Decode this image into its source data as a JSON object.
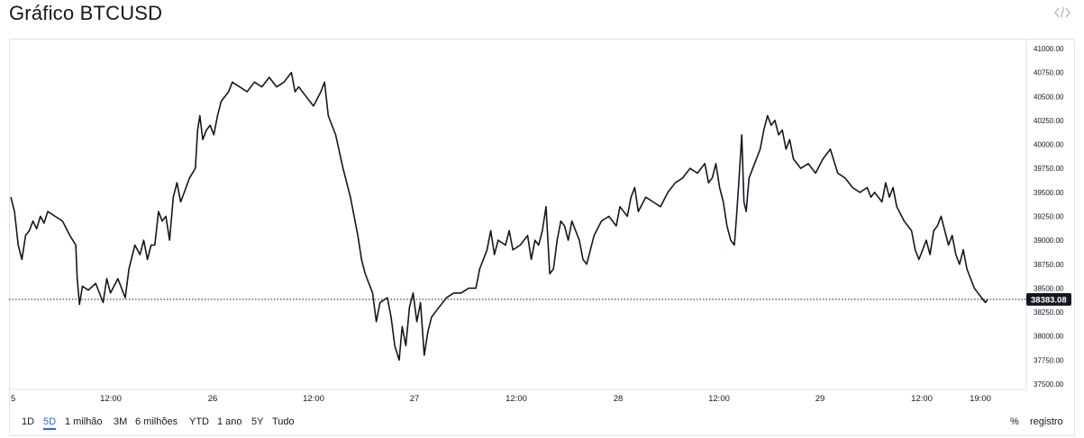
{
  "header": {
    "title": "Gráfico BTCUSD",
    "embed_icon": "code-brackets-icon"
  },
  "toolbar": {
    "ranges": [
      "1D",
      "5D",
      "1 milhão",
      "3M",
      "6 milhões",
      "YTD",
      "1 ano",
      "5Y",
      "Tudo"
    ],
    "active_range": "5D",
    "percent_label": "%",
    "log_label": "registro"
  },
  "colors": {
    "line": "#131722",
    "grid_border": "#e0e3eb",
    "price_badge_bg": "#131722",
    "price_badge_text": "#ffffff",
    "active_range": "#2962ff"
  },
  "chart_data": {
    "type": "line",
    "symbol": "BTCUSD",
    "x_tick_labels": [
      "5",
      "12:00",
      "26",
      "12:00",
      "27",
      "12:00",
      "28",
      "12:00",
      "29",
      "12:00",
      "19:00"
    ],
    "y_tick_labels": [
      "41000.00",
      "40750.00",
      "40500.00",
      "40250.00",
      "40000.00",
      "39750.00",
      "39500.00",
      "39250.00",
      "39000.00",
      "38750.00",
      "38500.00",
      "38250.00",
      "38000.00",
      "37750.00",
      "37500.00"
    ],
    "ylim": [
      37500,
      41000
    ],
    "x_hours_range": [
      0,
      117
    ],
    "last_price": 38383.08,
    "last_price_label": "38383.08",
    "grid": false,
    "series": [
      {
        "points": [
          [
            0,
            39450
          ],
          [
            0.5,
            39300
          ],
          [
            1,
            38950
          ],
          [
            1.5,
            38800
          ],
          [
            2,
            39050
          ],
          [
            2.5,
            39100
          ],
          [
            3,
            39200
          ],
          [
            3.5,
            39120
          ],
          [
            4,
            39250
          ],
          [
            4.5,
            39180
          ],
          [
            5,
            39300
          ],
          [
            6,
            39250
          ],
          [
            7,
            39200
          ],
          [
            8,
            39050
          ],
          [
            8.8,
            38950
          ],
          [
            9,
            38600
          ],
          [
            9.3,
            38330
          ],
          [
            9.7,
            38520
          ],
          [
            10.5,
            38480
          ],
          [
            11.5,
            38550
          ],
          [
            12.5,
            38350
          ],
          [
            13,
            38600
          ],
          [
            13.5,
            38450
          ],
          [
            14.5,
            38600
          ],
          [
            15.5,
            38400
          ],
          [
            16,
            38700
          ],
          [
            16.8,
            38950
          ],
          [
            17.5,
            38850
          ],
          [
            18,
            39000
          ],
          [
            18.5,
            38800
          ],
          [
            19,
            38950
          ],
          [
            19.5,
            38950
          ],
          [
            20,
            39300
          ],
          [
            20.5,
            39200
          ],
          [
            21,
            39250
          ],
          [
            21.5,
            39000
          ],
          [
            22,
            39450
          ],
          [
            22.5,
            39600
          ],
          [
            23,
            39400
          ],
          [
            23.5,
            39500
          ],
          [
            24.2,
            39650
          ],
          [
            25,
            39750
          ],
          [
            25.3,
            40150
          ],
          [
            25.6,
            40300
          ],
          [
            26,
            40050
          ],
          [
            26.5,
            40150
          ],
          [
            27,
            40200
          ],
          [
            27.5,
            40100
          ],
          [
            28,
            40300
          ],
          [
            28.5,
            40450
          ],
          [
            29,
            40500
          ],
          [
            29.5,
            40550
          ],
          [
            30,
            40650
          ],
          [
            31,
            40600
          ],
          [
            32,
            40550
          ],
          [
            33,
            40650
          ],
          [
            34,
            40600
          ],
          [
            35,
            40700
          ],
          [
            36,
            40600
          ],
          [
            37,
            40650
          ],
          [
            38,
            40750
          ],
          [
            38.5,
            40550
          ],
          [
            39,
            40600
          ],
          [
            40,
            40500
          ],
          [
            41,
            40400
          ],
          [
            42,
            40550
          ],
          [
            42.5,
            40650
          ],
          [
            43,
            40300
          ],
          [
            44,
            40100
          ],
          [
            45,
            39750
          ],
          [
            46,
            39450
          ],
          [
            47,
            39050
          ],
          [
            47.5,
            38800
          ],
          [
            48,
            38650
          ],
          [
            49,
            38450
          ],
          [
            49.5,
            38150
          ],
          [
            50,
            38350
          ],
          [
            51,
            38400
          ],
          [
            51.5,
            38200
          ],
          [
            52,
            37900
          ],
          [
            52.6,
            37750
          ],
          [
            53,
            38100
          ],
          [
            53.5,
            37900
          ],
          [
            54,
            38300
          ],
          [
            54.5,
            38450
          ],
          [
            55,
            38150
          ],
          [
            55.5,
            38350
          ],
          [
            56,
            37800
          ],
          [
            56.5,
            38050
          ],
          [
            57,
            38200
          ],
          [
            58,
            38300
          ],
          [
            59,
            38400
          ],
          [
            60,
            38450
          ],
          [
            61,
            38450
          ],
          [
            62,
            38500
          ],
          [
            63,
            38500
          ],
          [
            63.5,
            38700
          ],
          [
            64,
            38800
          ],
          [
            64.5,
            38900
          ],
          [
            65,
            39100
          ],
          [
            65.5,
            38850
          ],
          [
            66,
            39000
          ],
          [
            67,
            38950
          ],
          [
            67.5,
            39100
          ],
          [
            68,
            38900
          ],
          [
            69,
            38950
          ],
          [
            70,
            39050
          ],
          [
            70.5,
            38800
          ],
          [
            71,
            39000
          ],
          [
            71.5,
            38950
          ],
          [
            72,
            39100
          ],
          [
            72.5,
            39350
          ],
          [
            73,
            38650
          ],
          [
            73.5,
            38700
          ],
          [
            74,
            39000
          ],
          [
            74.5,
            39200
          ],
          [
            75,
            39150
          ],
          [
            75.5,
            39000
          ],
          [
            76,
            39200
          ],
          [
            76.5,
            39100
          ],
          [
            77,
            39000
          ],
          [
            77.5,
            38800
          ],
          [
            78,
            38750
          ],
          [
            79,
            39050
          ],
          [
            80,
            39200
          ],
          [
            81,
            39250
          ],
          [
            82,
            39150
          ],
          [
            82.5,
            39350
          ],
          [
            83,
            39300
          ],
          [
            83.5,
            39250
          ],
          [
            84,
            39450
          ],
          [
            84.5,
            39550
          ],
          [
            85,
            39300
          ],
          [
            86,
            39450
          ],
          [
            87,
            39400
          ],
          [
            88,
            39350
          ],
          [
            89,
            39500
          ],
          [
            90,
            39600
          ],
          [
            91,
            39650
          ],
          [
            92,
            39750
          ],
          [
            93,
            39700
          ],
          [
            94,
            39800
          ],
          [
            94.5,
            39600
          ],
          [
            95,
            39650
          ],
          [
            95.5,
            39800
          ],
          [
            96,
            39550
          ],
          [
            96.5,
            39400
          ],
          [
            97,
            39150
          ],
          [
            97.5,
            39000
          ],
          [
            98,
            38950
          ],
          [
            98.3,
            39250
          ],
          [
            98.6,
            39600
          ],
          [
            99,
            40100
          ],
          [
            99.3,
            39400
          ],
          [
            99.6,
            39300
          ],
          [
            100,
            39650
          ],
          [
            100.5,
            39750
          ],
          [
            101,
            39850
          ],
          [
            101.5,
            39950
          ],
          [
            102,
            40150
          ],
          [
            102.5,
            40300
          ],
          [
            103,
            40200
          ],
          [
            103.5,
            40250
          ],
          [
            104,
            40100
          ],
          [
            104.5,
            40150
          ],
          [
            105,
            39950
          ],
          [
            105.5,
            40050
          ],
          [
            106,
            39850
          ],
          [
            107,
            39750
          ],
          [
            108,
            39800
          ],
          [
            109,
            39700
          ],
          [
            110,
            39850
          ],
          [
            111,
            39950
          ],
          [
            112,
            39700
          ],
          [
            113,
            39650
          ],
          [
            114,
            39550
          ],
          [
            115,
            39500
          ],
          [
            116,
            39550
          ],
          [
            116.5,
            39450
          ],
          [
            117,
            39500
          ],
          [
            118,
            39400
          ],
          [
            118.5,
            39600
          ],
          [
            119,
            39450
          ],
          [
            119.5,
            39550
          ],
          [
            120,
            39350
          ],
          [
            121,
            39200
          ],
          [
            122,
            39100
          ],
          [
            122.5,
            38900
          ],
          [
            123,
            38800
          ],
          [
            123.5,
            38900
          ],
          [
            124,
            39000
          ],
          [
            124.5,
            38850
          ],
          [
            125,
            39100
          ],
          [
            125.5,
            39150
          ],
          [
            126,
            39250
          ],
          [
            126.5,
            39100
          ],
          [
            127,
            38950
          ],
          [
            127.5,
            39050
          ],
          [
            128,
            38850
          ],
          [
            128.5,
            38750
          ],
          [
            129,
            38900
          ],
          [
            129.5,
            38700
          ],
          [
            130,
            38600
          ],
          [
            130.5,
            38500
          ],
          [
            131,
            38450
          ],
          [
            131.5,
            38400
          ],
          [
            132,
            38350
          ],
          [
            132.3,
            38383.08
          ]
        ]
      }
    ]
  }
}
